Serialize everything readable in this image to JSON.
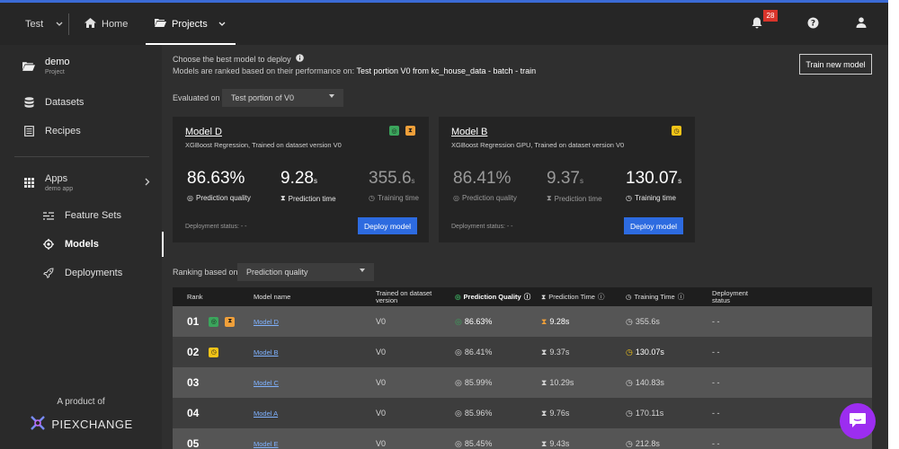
{
  "topbar": {
    "workspace": "Test",
    "home_label": "Home",
    "projects_label": "Projects",
    "notification_count": "28"
  },
  "sidebar": {
    "project_name": "demo",
    "project_type": "Project",
    "datasets": "Datasets",
    "recipes": "Recipes",
    "apps": "Apps",
    "apps_sub": "demo app",
    "feature_sets": "Feature Sets",
    "models": "Models",
    "deployments": "Deployments",
    "product_of": "A product of",
    "brand": "PIEXCHANGE"
  },
  "header": {
    "title": "Choose the best model to deploy",
    "ranked_prefix": "Models are ranked based on their performance on:",
    "ranked_value": "Test portion V0 from kc_house_data - batch - train",
    "train_button": "Train new model"
  },
  "evaluated": {
    "label": "Evaluated on",
    "value": "Test portion of V0"
  },
  "cards": [
    {
      "title": "Model D",
      "subtitle": "XGBoost Regression, Trained on dataset version V0",
      "quality_value": "86.63%",
      "quality_label": "Prediction quality",
      "pred_time_value": "9.28",
      "pred_time_unit": "s",
      "pred_time_label": "Prediction time",
      "train_time_value": "355.6",
      "train_time_unit": "s",
      "train_time_label": "Training time",
      "deployment_status": "Deployment status: - -",
      "deploy_button": "Deploy model"
    },
    {
      "title": "Model B",
      "subtitle": "XGBoost Regression GPU, Trained on dataset version V0",
      "quality_value": "86.41%",
      "quality_label": "Prediction quality",
      "pred_time_value": "9.37",
      "pred_time_unit": "s",
      "pred_time_label": "Prediction time",
      "train_time_value": "130.07",
      "train_time_unit": "s",
      "train_time_label": "Training time",
      "deployment_status": "Deployment status: - -",
      "deploy_button": "Deploy model"
    }
  ],
  "ranking": {
    "label": "Ranking based on",
    "value": "Prediction quality"
  },
  "table": {
    "headers": {
      "rank": "Rank",
      "model_name": "Model name",
      "trained_on": "Trained on dataset version",
      "quality": "Prediction Quality",
      "pred_time": "Prediction Time",
      "train_time": "Training Time",
      "deployment": "Deployment status"
    },
    "rows": [
      {
        "rank": "01",
        "name": "Model D",
        "version": "V0",
        "quality": "86.63%",
        "pred_time": "9.28s",
        "train_time": "355.6s",
        "status": "- -"
      },
      {
        "rank": "02",
        "name": "Model B",
        "version": "V0",
        "quality": "86.41%",
        "pred_time": "9.37s",
        "train_time": "130.07s",
        "status": "- -"
      },
      {
        "rank": "03",
        "name": "Model C",
        "version": "V0",
        "quality": "85.99%",
        "pred_time": "10.29s",
        "train_time": "140.83s",
        "status": "- -"
      },
      {
        "rank": "04",
        "name": "Model A",
        "version": "V0",
        "quality": "85.96%",
        "pred_time": "9.76s",
        "train_time": "170.11s",
        "status": "- -"
      },
      {
        "rank": "05",
        "name": "Model E",
        "version": "V0",
        "quality": "85.45%",
        "pred_time": "9.43s",
        "train_time": "212.8s",
        "status": "- -"
      }
    ]
  },
  "colors": {
    "accent": "#2d6be0",
    "badge": "#d9342b",
    "chat": "#9c2df0",
    "icon_green": "#3ba55c",
    "icon_orange": "#f0a03a",
    "icon_yellow": "#f2c418"
  }
}
